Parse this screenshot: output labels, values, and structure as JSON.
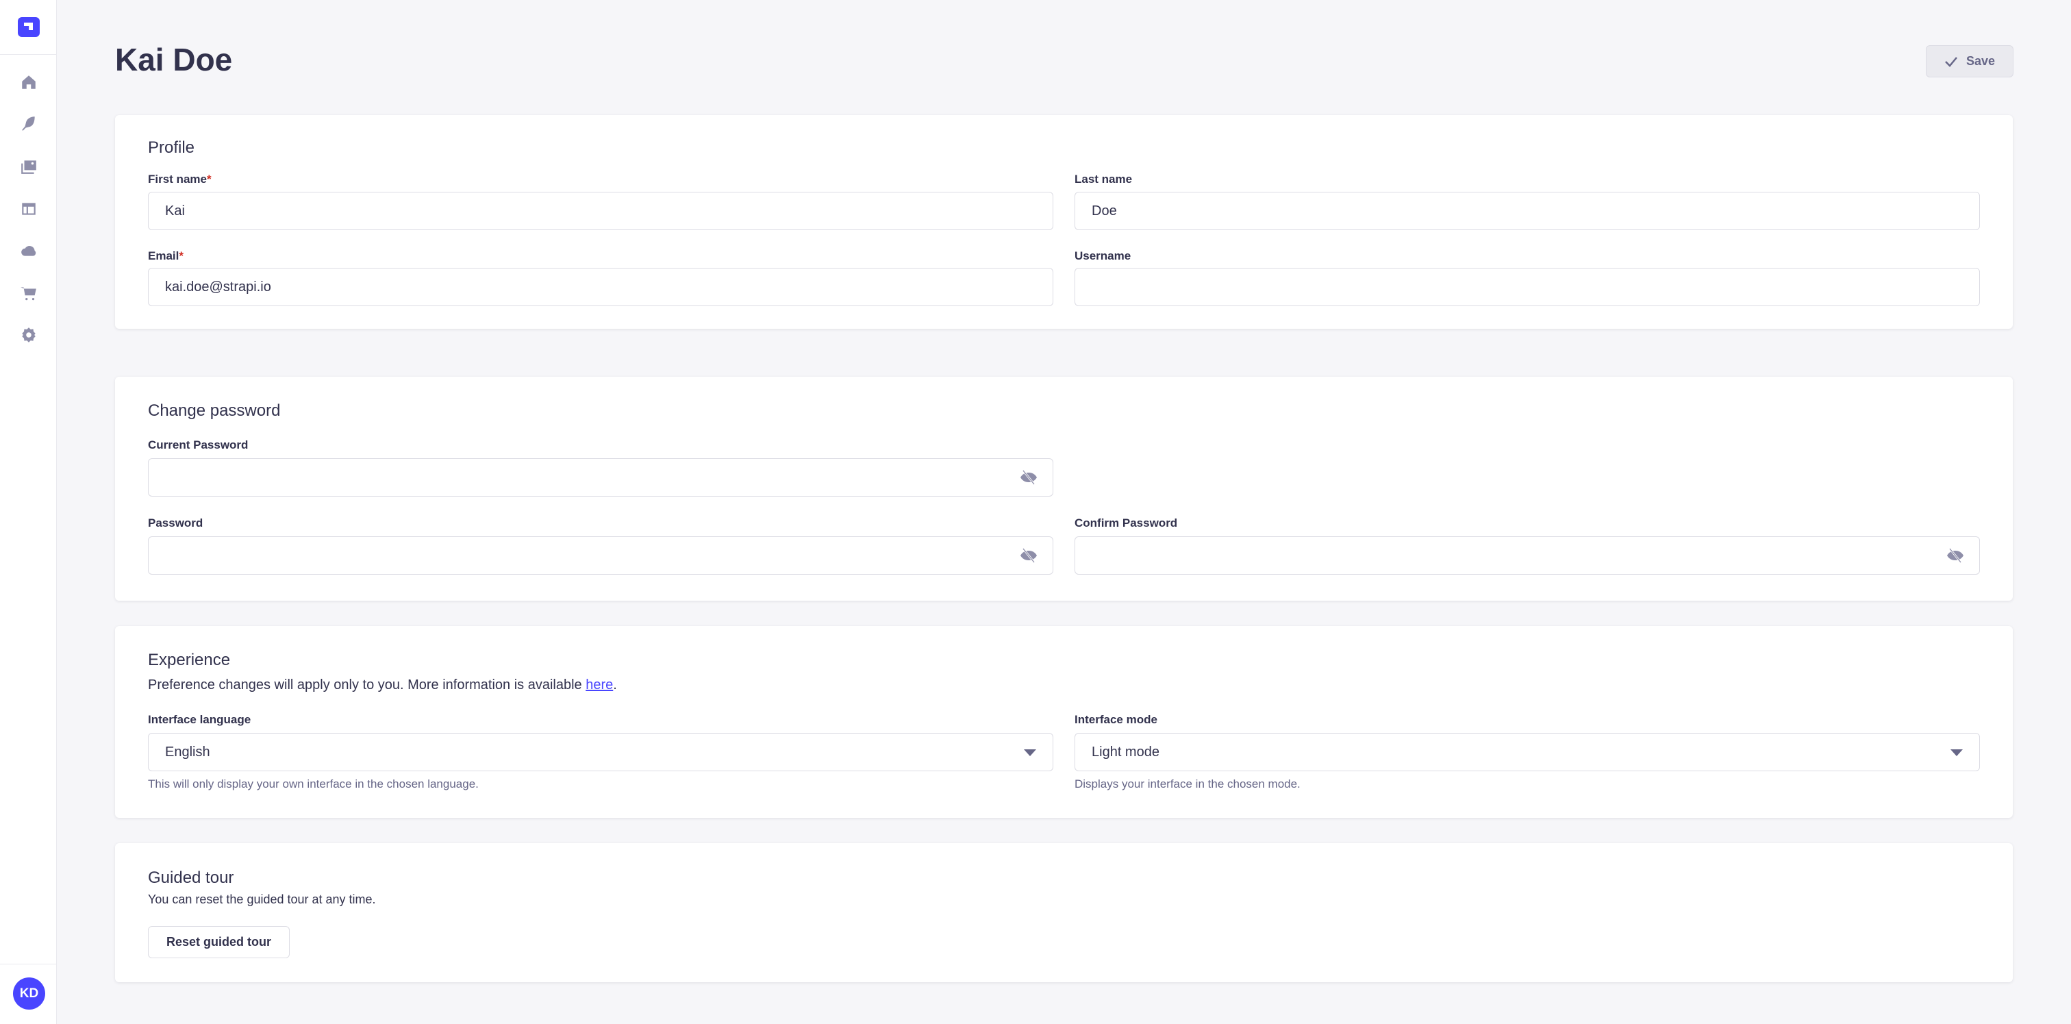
{
  "sidebar": {
    "logo": "strapi-logo",
    "items": [
      {
        "name": "home",
        "icon": "home-icon"
      },
      {
        "name": "content-manager",
        "icon": "feather-icon"
      },
      {
        "name": "media-library",
        "icon": "images-icon"
      },
      {
        "name": "content-type-builder",
        "icon": "layout-icon"
      },
      {
        "name": "cloud",
        "icon": "cloud-icon"
      },
      {
        "name": "marketplace",
        "icon": "cart-icon"
      },
      {
        "name": "settings",
        "icon": "gear-icon"
      }
    ],
    "avatar": "KD"
  },
  "header": {
    "title": "Kai Doe",
    "save_label": "Save"
  },
  "profile": {
    "title": "Profile",
    "first_name": {
      "label": "First name",
      "required": "*",
      "value": "Kai"
    },
    "last_name": {
      "label": "Last name",
      "value": "Doe"
    },
    "email": {
      "label": "Email",
      "required": "*",
      "value": "kai.doe@strapi.io"
    },
    "username": {
      "label": "Username",
      "value": ""
    }
  },
  "password": {
    "title": "Change password",
    "current": {
      "label": "Current Password",
      "value": ""
    },
    "new": {
      "label": "Password",
      "value": ""
    },
    "confirm": {
      "label": "Confirm Password",
      "value": ""
    }
  },
  "experience": {
    "title": "Experience",
    "description": "Preference changes will apply only to you. More information is available ",
    "link": "here",
    "description_end": ".",
    "language": {
      "label": "Interface language",
      "value": "English",
      "hint": "This will only display your own interface in the chosen language."
    },
    "mode": {
      "label": "Interface mode",
      "value": "Light mode",
      "hint": "Displays your interface in the chosen mode."
    }
  },
  "tour": {
    "title": "Guided tour",
    "description": "You can reset the guided tour at any time.",
    "button": "Reset guided tour"
  },
  "colors": {
    "primary": "#4945ff",
    "background": "#f6f6f9",
    "text": "#32324d",
    "icon": "#8e8ea9",
    "required": "#d02b20"
  }
}
